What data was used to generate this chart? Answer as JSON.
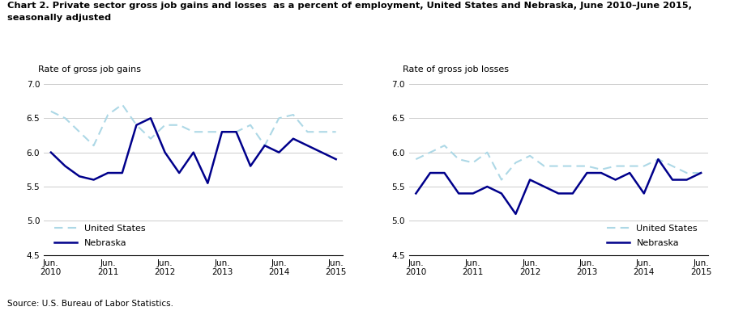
{
  "title_line1": "Chart 2. Private sector gross job gains and losses  as a percent of employment, United States and Nebraska, June 2010–June 2015,",
  "title_line2": "seasonally adjusted",
  "source": "Source: U.S. Bureau of Labor Statistics.",
  "left_ylabel": "Rate of gross job gains",
  "right_ylabel": "Rate of gross job losses",
  "x_labels": [
    "Jun.\n2010",
    "Jun.\n2011",
    "Jun.\n2012",
    "Jun.\n2013",
    "Jun.\n2014",
    "Jun.\n2015"
  ],
  "x_positions": [
    0,
    4,
    8,
    12,
    16,
    20
  ],
  "gains_us": [
    6.6,
    6.5,
    6.3,
    6.1,
    6.55,
    6.7,
    6.4,
    6.2,
    6.4,
    6.4,
    6.3,
    6.3,
    6.3,
    6.3,
    6.4,
    6.1,
    6.5,
    6.55,
    6.3,
    6.3,
    6.3
  ],
  "gains_ne": [
    6.0,
    5.8,
    5.65,
    5.6,
    5.7,
    5.7,
    6.4,
    6.5,
    6.0,
    5.7,
    6.0,
    5.55,
    6.3,
    6.3,
    5.8,
    6.1,
    6.0,
    6.2,
    6.1,
    6.0,
    5.9
  ],
  "losses_us": [
    5.9,
    6.0,
    6.1,
    5.9,
    5.85,
    6.0,
    5.6,
    5.85,
    5.95,
    5.8,
    5.8,
    5.8,
    5.8,
    5.75,
    5.8,
    5.8,
    5.8,
    5.9,
    5.8,
    5.7,
    5.7
  ],
  "losses_ne": [
    5.4,
    5.7,
    5.7,
    5.4,
    5.4,
    5.5,
    5.4,
    5.1,
    5.6,
    5.5,
    5.4,
    5.4,
    5.7,
    5.7,
    5.6,
    5.7,
    5.4,
    5.9,
    5.6,
    5.6,
    5.7
  ],
  "us_color": "#ADD8E6",
  "ne_color": "#00008B",
  "ylim": [
    4.5,
    7.0
  ],
  "yticks": [
    4.5,
    5.0,
    5.5,
    6.0,
    6.5,
    7.0
  ],
  "legend_us": "United States",
  "legend_ne": "Nebraska"
}
